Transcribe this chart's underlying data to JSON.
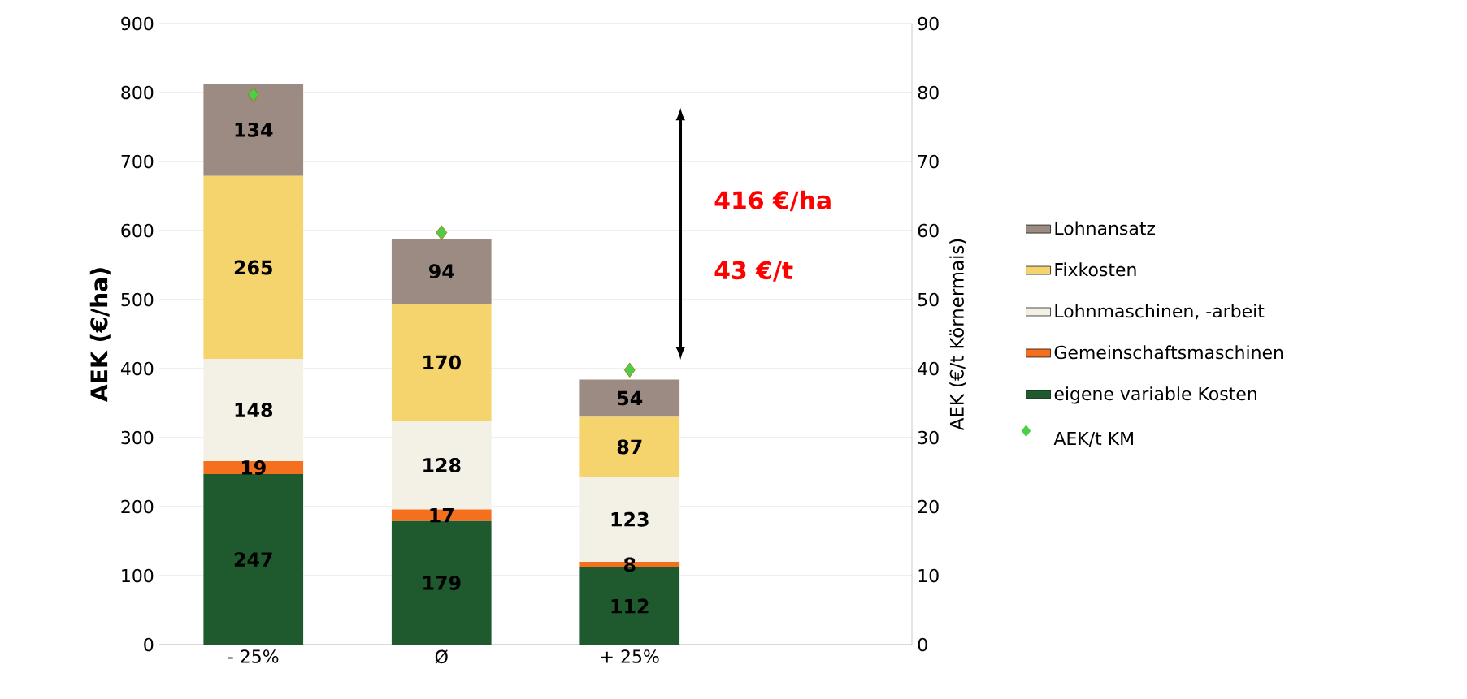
{
  "chart_data": {
    "type": "bar",
    "stacked": true,
    "grid": "y",
    "legend": "right",
    "categories": [
      "- 25%",
      "Ø",
      "+ 25%",
      null
    ],
    "ylabel": "AEK (€/ha)",
    "y2label": "AEK (€/t Körnermais)",
    "ylim": [
      0,
      900
    ],
    "yticks": [
      0,
      100,
      200,
      300,
      400,
      500,
      600,
      700,
      800,
      900
    ],
    "y2lim": [
      0,
      90
    ],
    "y2ticks": [
      0,
      10,
      20,
      30,
      40,
      50,
      60,
      70,
      80,
      90
    ],
    "annotations": [
      "416 €/ha",
      "43 €/t"
    ],
    "series": [
      {
        "name": "eigene variable Kosten",
        "color": "#1e5a2e",
        "values": [
          247,
          179,
          112,
          null
        ],
        "value_labels": [
          "247",
          "179",
          "112",
          null
        ]
      },
      {
        "name": "Gemeinschaftsmaschinen",
        "color": "#f4701e",
        "values": [
          19,
          17,
          8,
          null
        ],
        "value_labels": [
          "19",
          "17",
          "8",
          null
        ]
      },
      {
        "name": "Lohnmaschinen, -arbeit",
        "color": "#f3f0e6",
        "values": [
          148,
          128,
          123,
          null
        ],
        "value_labels": [
          "148",
          "128",
          "123",
          null
        ]
      },
      {
        "name": "Fixkosten",
        "color": "#f5d46e",
        "values": [
          265,
          170,
          87,
          null
        ],
        "value_labels": [
          "265",
          "170",
          "87",
          null
        ]
      },
      {
        "name": "Lohnansatz",
        "color": "#9c8b82",
        "values": [
          134,
          94,
          54,
          null
        ],
        "value_labels": [
          "134",
          "94",
          "54",
          null
        ]
      },
      {
        "name": "AEK/t KM",
        "type": "scatter",
        "axis": "y2",
        "marker": "diamond",
        "color": "#4ccf46",
        "values": [
          79.7,
          59.7,
          39.8,
          null
        ]
      }
    ]
  }
}
